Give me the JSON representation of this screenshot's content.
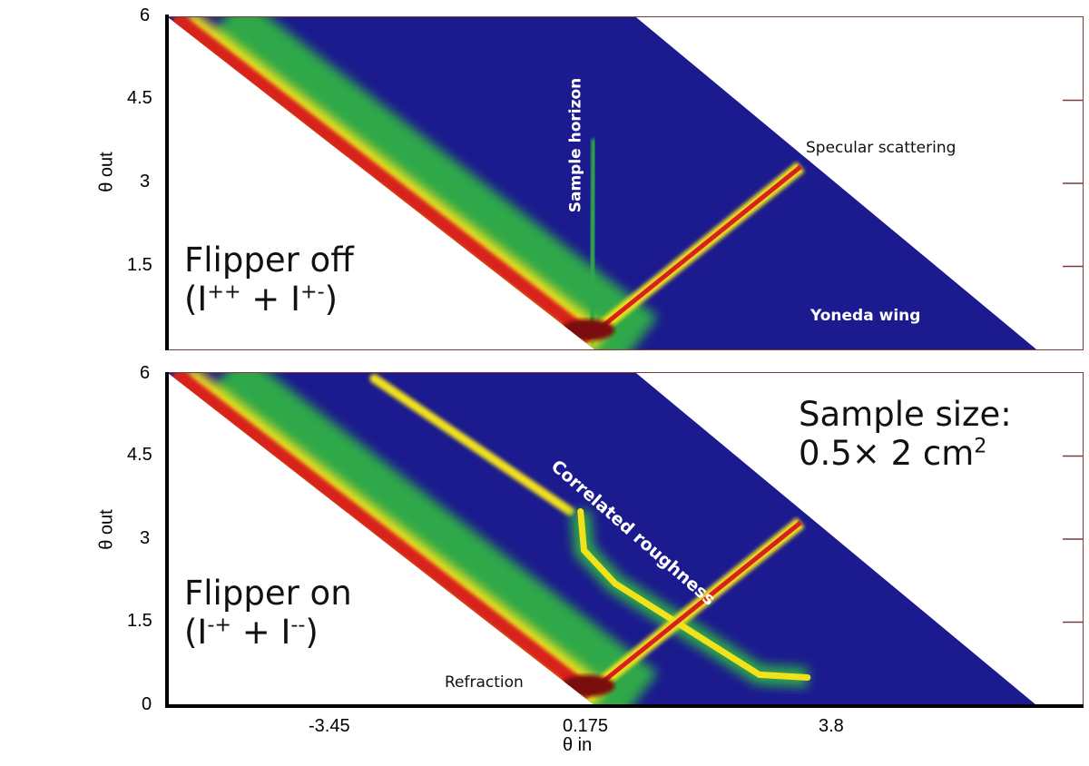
{
  "chart_data": [
    {
      "type": "heatmap",
      "panel": "top",
      "title": "Flipper off",
      "subtitle": "(I++ + I+-)",
      "subtitle_parts": {
        "open": "(I",
        "sup1": "++",
        "mid": " + I",
        "sup2": "+-",
        "close": ")"
      },
      "xlabel": "θ in",
      "ylabel": "θ out",
      "xlim": [
        -5.9,
        7.4
      ],
      "ylim": [
        0,
        6
      ],
      "yticks": [
        "1.5",
        "3",
        "4.5",
        "6"
      ],
      "yticks_values": [
        1.5,
        3,
        4.5,
        6
      ],
      "annotations": [
        "Sample horizon",
        "Specular scattering",
        "Yoneda wing"
      ],
      "features": {
        "region": [
          [
            -5.9,
            6
          ],
          [
            0.91,
            6
          ],
          [
            6.73,
            0
          ],
          [
            0.3,
            0
          ]
        ],
        "specular": [
          [
            0.2,
            0.2
          ],
          [
            3.3,
            3.3
          ]
        ],
        "yoneda": [
          [
            0.3,
            0.5
          ],
          [
            3.6,
            0.5
          ]
        ],
        "horizon": [
          [
            0.25,
            0.1
          ],
          [
            0.3,
            3.8
          ]
        ],
        "edge_band": [
          [
            -5.8,
            6
          ],
          [
            0.25,
            0.2
          ]
        ]
      }
    },
    {
      "type": "heatmap",
      "panel": "bottom",
      "title": "Flipper on",
      "subtitle": "(I-+ + I--)",
      "subtitle_parts": {
        "open": "(I",
        "sup1": "-+",
        "mid": " + I",
        "sup2": "--",
        "close": ")"
      },
      "xlabel": "θ in",
      "ylabel": "θ out",
      "xlim": [
        -5.9,
        7.4
      ],
      "ylim": [
        0,
        6
      ],
      "xticks": [
        "-3.45",
        "0.175",
        "3.8"
      ],
      "xticks_values": [
        -3.45,
        0.175,
        3.8
      ],
      "yticks": [
        "0",
        "1.5",
        "3",
        "4.5",
        "6"
      ],
      "yticks_values": [
        0,
        1.5,
        3,
        4.5,
        6
      ],
      "annotations": [
        "Correlated roughness",
        "Refraction"
      ],
      "sample_size_label": "Sample size:",
      "sample_size_value": "0.5× 2 cm",
      "sample_size_exp": "2",
      "features": {
        "region": [
          [
            -5.9,
            6
          ],
          [
            0.91,
            6
          ],
          [
            6.73,
            0
          ],
          [
            0.3,
            0
          ]
        ],
        "specular": [
          [
            0.2,
            0.2
          ],
          [
            3.3,
            3.3
          ]
        ],
        "yoneda": [
          [
            0.3,
            0.45
          ],
          [
            4.5,
            0.45
          ]
        ],
        "edge_band": [
          [
            -5.8,
            6
          ],
          [
            0.25,
            0.2
          ]
        ],
        "stripe": [
          [
            -2.9,
            5.9
          ],
          [
            -0.05,
            3.5
          ]
        ],
        "roughness_curve": [
          [
            0.1,
            3.5
          ],
          [
            0.15,
            2.8
          ],
          [
            0.6,
            2.2
          ],
          [
            2.0,
            1.1
          ],
          [
            2.7,
            0.55
          ],
          [
            3.4,
            0.5
          ]
        ]
      }
    }
  ],
  "colors": {
    "bg": "#1b1a8e",
    "green": "#2fa84a",
    "yellow": "#f2e21c",
    "orange": "#f5781c",
    "red": "#d8201c",
    "darkred": "#7a0f0f",
    "frame": "#7a3a3a"
  }
}
